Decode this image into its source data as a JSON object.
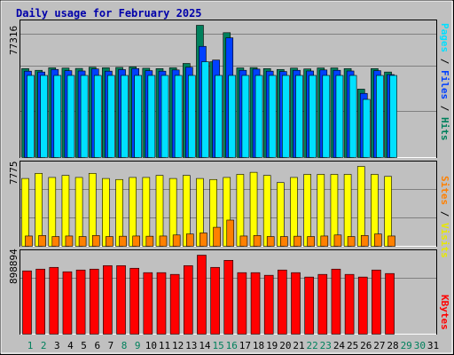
{
  "title": "Daily usage for February 2025",
  "colors": {
    "hits": "#00805c",
    "files": "#0040ff",
    "pages": "#00e0ff",
    "visits": "#ffff00",
    "sites": "#ff8000",
    "kbytes": "#ff0000",
    "weekend_day": "#00805c",
    "weekday": "#000000",
    "title": "#0000aa"
  },
  "panels": {
    "top": {
      "max_label": "77316",
      "legend": [
        "Pages",
        "Files",
        "Hits"
      ]
    },
    "middle": {
      "max_label": "7775",
      "legend": [
        "Sites",
        "Visits"
      ]
    },
    "bottom": {
      "max_label": "898894",
      "legend": [
        "KBytes"
      ]
    }
  },
  "day_labels": [
    "1",
    "2",
    "3",
    "4",
    "5",
    "6",
    "7",
    "8",
    "9",
    "10",
    "11",
    "12",
    "13",
    "14",
    "15",
    "16",
    "17",
    "18",
    "19",
    "20",
    "21",
    "22",
    "23",
    "24",
    "25",
    "26",
    "27",
    "28",
    "29",
    "30",
    "31"
  ],
  "weekend_days": [
    1,
    2,
    8,
    9,
    15,
    16,
    22,
    23,
    29,
    30
  ],
  "chart_data": [
    {
      "type": "bar",
      "categories": [
        "1",
        "2",
        "3",
        "4",
        "5",
        "6",
        "7",
        "8",
        "9",
        "10",
        "11",
        "12",
        "13",
        "14",
        "15",
        "16",
        "17",
        "18",
        "19",
        "20",
        "21",
        "22",
        "23",
        "24",
        "25",
        "26",
        "27",
        "28"
      ],
      "series": [
        {
          "name": "Hits",
          "values": [
            52000,
            51000,
            52500,
            52300,
            52100,
            52800,
            52500,
            52700,
            53000,
            52200,
            52000,
            52500,
            55000,
            77316,
            56000,
            73000,
            52400,
            52600,
            52000,
            51500,
            52300,
            51800,
            52400,
            52400,
            52000,
            40000,
            52000,
            50000
          ]
        },
        {
          "name": "Files",
          "values": [
            50500,
            50000,
            51500,
            50800,
            50600,
            51800,
            50500,
            51400,
            52000,
            50800,
            50500,
            51200,
            52800,
            65000,
            57000,
            70000,
            51000,
            51700,
            50500,
            50300,
            51000,
            50600,
            51200,
            51000,
            50600,
            37500,
            50800,
            48500
          ]
        },
        {
          "name": "Pages",
          "values": [
            48000,
            48000,
            48000,
            48000,
            48000,
            48000,
            48000,
            48000,
            48000,
            48000,
            48000,
            48000,
            48000,
            56000,
            48000,
            48000,
            48000,
            48000,
            48000,
            48000,
            48000,
            48000,
            48000,
            48000,
            48000,
            34000,
            48000,
            48000
          ]
        }
      ],
      "ylim": [
        0,
        77316
      ],
      "max_label": "77316"
    },
    {
      "type": "bar",
      "categories": [
        "1",
        "2",
        "3",
        "4",
        "5",
        "6",
        "7",
        "8",
        "9",
        "10",
        "11",
        "12",
        "13",
        "14",
        "15",
        "16",
        "17",
        "18",
        "19",
        "20",
        "21",
        "22",
        "23",
        "24",
        "25",
        "26",
        "27",
        "28"
      ],
      "series": [
        {
          "name": "Visits",
          "values": [
            6600,
            7100,
            6700,
            6900,
            6700,
            7100,
            6600,
            6500,
            6700,
            6700,
            6900,
            6600,
            6900,
            6600,
            6500,
            6700,
            7000,
            7200,
            6900,
            6200,
            6700,
            7000,
            7000,
            7000,
            7000,
            7775,
            7000,
            6800
          ]
        },
        {
          "name": "Sites",
          "values": [
            1000,
            1050,
            950,
            1000,
            950,
            1050,
            950,
            980,
            1000,
            980,
            1000,
            1100,
            1200,
            1300,
            1850,
            2550,
            1000,
            1050,
            950,
            950,
            980,
            950,
            1000,
            1100,
            950,
            1050,
            1200,
            1000
          ]
        }
      ],
      "ylim": [
        0,
        7775
      ],
      "max_label": "7775"
    },
    {
      "type": "bar",
      "categories": [
        "1",
        "2",
        "3",
        "4",
        "5",
        "6",
        "7",
        "8",
        "9",
        "10",
        "11",
        "12",
        "13",
        "14",
        "15",
        "16",
        "17",
        "18",
        "19",
        "20",
        "21",
        "22",
        "23",
        "24",
        "25",
        "26",
        "27",
        "28"
      ],
      "series": [
        {
          "name": "KBytes",
          "values": [
            720000,
            740000,
            760000,
            710000,
            730000,
            740000,
            780000,
            780000,
            750000,
            700000,
            700000,
            680000,
            780000,
            898894,
            760000,
            840000,
            700000,
            700000,
            670000,
            730000,
            700000,
            650000,
            680000,
            740000,
            680000,
            650000,
            730000,
            690000
          ]
        }
      ],
      "ylim": [
        0,
        898894
      ],
      "max_label": "898894"
    }
  ]
}
